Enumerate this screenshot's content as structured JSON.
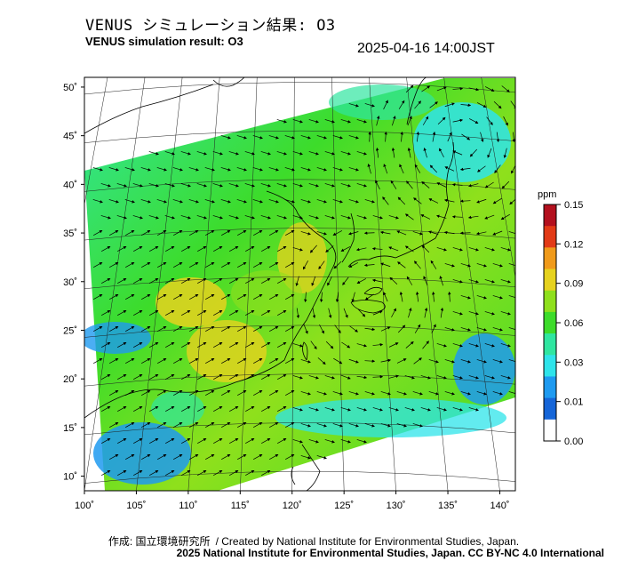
{
  "header": {
    "title_jp": "VENUS シミュレーション結果: O3",
    "title_en": "VENUS simulation result: O3",
    "timestamp": "2025-04-16 14:00JST"
  },
  "map": {
    "lon_ticks": [
      "100˚",
      "105˚",
      "110˚",
      "115˚",
      "120˚",
      "125˚",
      "130˚",
      "135˚",
      "140˚"
    ],
    "lat_ticks": [
      "50˚",
      "45˚",
      "40˚",
      "35˚",
      "30˚",
      "25˚",
      "20˚",
      "15˚",
      "10˚"
    ],
    "lon_range": [
      100,
      141.5
    ],
    "lat_range": [
      8.5,
      51
    ],
    "field_colors": [
      "#ffffff",
      "#1565d8",
      "#1e9af0",
      "#2ee4ea",
      "#2fe6a0",
      "#3ddc2a",
      "#8fe01c",
      "#e6d21e",
      "#f09a1a",
      "#e23a16",
      "#b3101e"
    ]
  },
  "colorbar": {
    "unit": "ppm",
    "ticks": [
      "0.15",
      "0.12",
      "0.09",
      "0.06",
      "0.03",
      "0.01",
      "0.00"
    ],
    "colors": [
      "#b3101e",
      "#e23a16",
      "#f09a1a",
      "#e6d21e",
      "#8fe01c",
      "#3ddc2a",
      "#2fe6a0",
      "#2ee4ea",
      "#1e9af0",
      "#1565d8",
      "#ffffff"
    ]
  },
  "footer": {
    "credit_jp": "作成: 国立環境研究所",
    "credit_en": "/ Created by National Institute for Environmental Studies, Japan.",
    "license": "2025 National Institute for Environmental Studies, Japan. CC BY-NC 4.0 International"
  }
}
